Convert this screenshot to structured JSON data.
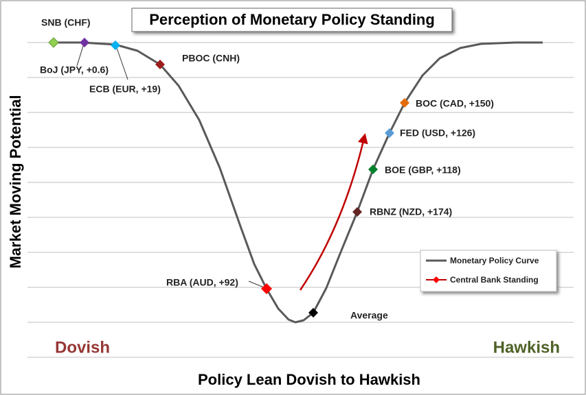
{
  "title": "Perception of Monetary Policy Standing",
  "y_axis_label": "Market Moving Potential",
  "x_axis_label": "Policy Lean Dovish to Hawkish",
  "left_label": "Dovish",
  "right_label": "Hawkish",
  "legend": [
    "Monetary Policy Curve",
    "Central Bank Standing"
  ],
  "banks": [
    "SNB (CHF)",
    "BoJ (JPY, +0.6)",
    "ECB (EUR, +19)",
    "PBOC (CNH)",
    "RBA (AUD, +92)",
    "Average",
    "RBNZ (NZD, +174)",
    "BOE (GBP, +118)",
    "FED (USD, +126)",
    "BOC (CAD, +150)"
  ]
}
